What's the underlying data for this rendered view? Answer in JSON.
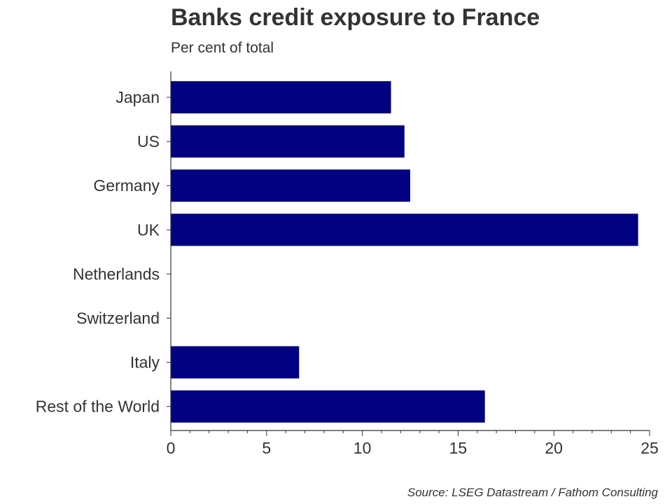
{
  "chart_data": {
    "type": "bar",
    "orientation": "horizontal",
    "title": "Banks credit exposure to France",
    "subtitle": "Per cent of total",
    "source": "Source: LSEG Datastream / Fathom Consulting",
    "categories": [
      "Japan",
      "US",
      "Germany",
      "UK",
      "Netherlands",
      "Switzerland",
      "Italy",
      "Rest of the World"
    ],
    "values": [
      11.5,
      12.2,
      12.5,
      24.4,
      0,
      0,
      6.7,
      16.4
    ],
    "xlim": [
      0,
      25
    ],
    "x_ticks": [
      "0",
      "5",
      "10",
      "15",
      "20",
      "25"
    ],
    "bar_color": "#000080",
    "axis_color": "#333333",
    "grid": false,
    "legend": "none"
  }
}
